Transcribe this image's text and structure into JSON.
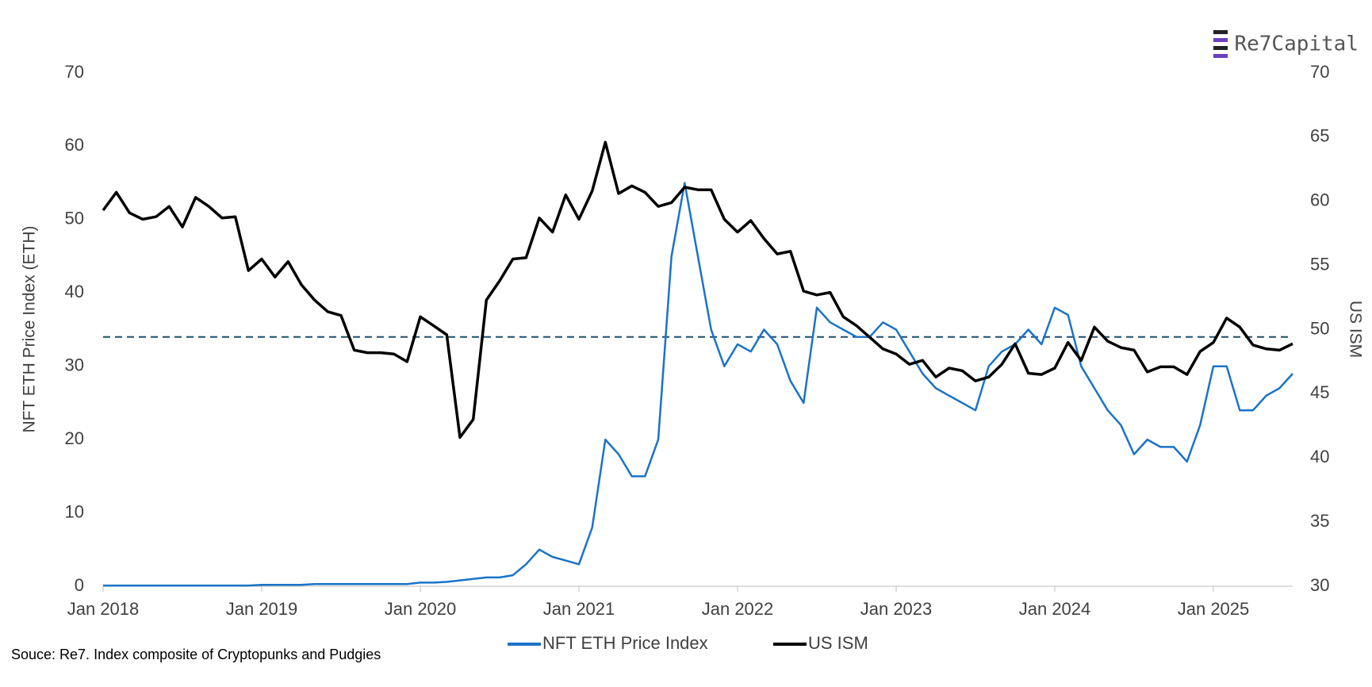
{
  "chart_data": {
    "type": "line",
    "brand": "Re7Capital",
    "source": "Souce: Re7. Index composite of Cryptopunks and Pudgies",
    "y_label": "NFT ETH Price Index (ETH)",
    "y2_label": "US ISM",
    "xlim": [
      "2018-01",
      "2025-07"
    ],
    "xticks": [
      {
        "value": "2018-01",
        "label": "Jan 2018"
      },
      {
        "value": "2019-01",
        "label": "Jan 2019"
      },
      {
        "value": "2020-01",
        "label": "Jan 2020"
      },
      {
        "value": "2021-01",
        "label": "Jan 2021"
      },
      {
        "value": "2022-01",
        "label": "Jan 2022"
      },
      {
        "value": "2023-01",
        "label": "Jan 2023"
      },
      {
        "value": "2024-01",
        "label": "Jan 2024"
      },
      {
        "value": "2025-01",
        "label": "Jan 2025"
      }
    ],
    "ylim": [
      0,
      70
    ],
    "yticks": [
      0,
      10,
      20,
      30,
      40,
      50,
      60,
      70
    ],
    "y2lim": [
      30,
      70
    ],
    "y2ticks": [
      30,
      35,
      40,
      45,
      50,
      55,
      60,
      65,
      70
    ],
    "reference_line": {
      "value": 34,
      "color": "#1f4e6e",
      "dashed": true
    },
    "legend": "bottom",
    "x": [
      "2018-01",
      "2018-02",
      "2018-03",
      "2018-04",
      "2018-05",
      "2018-06",
      "2018-07",
      "2018-08",
      "2018-09",
      "2018-10",
      "2018-11",
      "2018-12",
      "2019-01",
      "2019-02",
      "2019-03",
      "2019-04",
      "2019-05",
      "2019-06",
      "2019-07",
      "2019-08",
      "2019-09",
      "2019-10",
      "2019-11",
      "2019-12",
      "2020-01",
      "2020-02",
      "2020-03",
      "2020-04",
      "2020-05",
      "2020-06",
      "2020-07",
      "2020-08",
      "2020-09",
      "2020-10",
      "2020-11",
      "2020-12",
      "2021-01",
      "2021-02",
      "2021-03",
      "2021-04",
      "2021-05",
      "2021-06",
      "2021-07",
      "2021-08",
      "2021-09",
      "2021-10",
      "2021-11",
      "2021-12",
      "2022-01",
      "2022-02",
      "2022-03",
      "2022-04",
      "2022-05",
      "2022-06",
      "2022-07",
      "2022-08",
      "2022-09",
      "2022-10",
      "2022-11",
      "2022-12",
      "2023-01",
      "2023-02",
      "2023-03",
      "2023-04",
      "2023-05",
      "2023-06",
      "2023-07",
      "2023-08",
      "2023-09",
      "2023-10",
      "2023-11",
      "2023-12",
      "2024-01",
      "2024-02",
      "2024-03",
      "2024-04",
      "2024-05",
      "2024-06",
      "2024-07",
      "2024-08",
      "2024-09",
      "2024-10",
      "2024-11",
      "2024-12",
      "2025-01",
      "2025-02",
      "2025-03",
      "2025-04",
      "2025-05",
      "2025-06",
      "2025-07"
    ],
    "series": [
      {
        "name": "NFT ETH Price Index",
        "color": "#1a73c8",
        "axis": "y",
        "values": [
          0.1,
          0.1,
          0.1,
          0.1,
          0.1,
          0.1,
          0.1,
          0.1,
          0.1,
          0.1,
          0.1,
          0.1,
          0.2,
          0.2,
          0.2,
          0.2,
          0.3,
          0.3,
          0.3,
          0.3,
          0.3,
          0.3,
          0.3,
          0.3,
          0.5,
          0.5,
          0.6,
          0.8,
          1.0,
          1.2,
          1.2,
          1.5,
          3,
          5,
          4,
          3.5,
          3,
          8,
          20,
          18,
          15,
          15,
          20,
          45,
          55,
          45,
          35,
          30,
          33,
          32,
          35,
          33,
          28,
          25,
          38,
          36,
          35,
          34,
          34,
          36,
          35,
          32,
          29,
          27,
          26,
          25,
          24,
          30,
          32,
          33,
          35,
          33,
          38,
          37,
          30,
          27,
          24,
          22,
          18,
          20,
          19,
          19,
          17,
          22,
          30,
          30,
          24,
          24,
          26,
          27,
          29
        ]
      },
      {
        "name": "US ISM",
        "color": "#000000",
        "axis": "y2",
        "values": [
          59.3,
          60.7,
          59.1,
          58.6,
          58.8,
          59.6,
          58.0,
          60.3,
          59.6,
          58.7,
          58.8,
          54.6,
          55.5,
          54.1,
          55.3,
          53.5,
          52.3,
          51.4,
          51.1,
          48.4,
          48.2,
          48.2,
          48.1,
          47.5,
          51.0,
          50.3,
          49.6,
          41.6,
          43.0,
          52.3,
          53.8,
          55.5,
          55.6,
          58.7,
          57.6,
          60.5,
          58.6,
          60.8,
          64.6,
          60.6,
          61.2,
          60.7,
          59.6,
          59.9,
          61.1,
          60.9,
          60.9,
          58.6,
          57.6,
          58.5,
          57.1,
          55.9,
          56.1,
          53.0,
          52.7,
          52.9,
          51.0,
          50.3,
          49.4,
          48.5,
          48.1,
          47.3,
          47.6,
          46.3,
          47.0,
          46.8,
          46.0,
          46.3,
          47.3,
          48.9,
          46.6,
          46.5,
          47.0,
          49.0,
          47.6,
          50.2,
          49.1,
          48.6,
          48.4,
          46.7,
          47.1,
          47.1,
          46.5,
          48.3,
          49.0,
          50.9,
          50.2,
          48.8,
          48.5,
          48.4,
          48.9
        ]
      }
    ]
  }
}
